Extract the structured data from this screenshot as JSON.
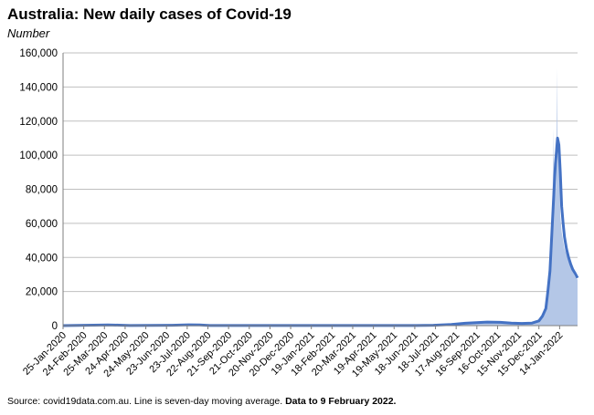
{
  "title": "Australia: New daily cases of Covid-19",
  "subtitle": "Number",
  "source": {
    "text": "Source: covid19data.com.au.  Line is seven-day moving average. ",
    "bold": "Data to 9 February 2022."
  },
  "colors": {
    "area": "#b4c7e7",
    "line": "#4472c4",
    "grid": "#bfbfbf",
    "axis": "#7f7f7f"
  },
  "chart_data": {
    "type": "area",
    "xlabel": "",
    "ylabel": "",
    "ylim": [
      0,
      160000
    ],
    "yticks": [
      0,
      20000,
      40000,
      60000,
      80000,
      100000,
      120000,
      140000,
      160000
    ],
    "ytick_labels": [
      "0",
      "20,000",
      "40,000",
      "60,000",
      "80,000",
      "100,000",
      "120,000",
      "140,000",
      "160,000"
    ],
    "x_range": [
      "2020-01-25",
      "2022-02-09"
    ],
    "x_tick_labels": [
      "25-Jan-2020",
      "24-Feb-2020",
      "25-Mar-2020",
      "24-Apr-2020",
      "24-May-2020",
      "23-Jun-2020",
      "23-Jul-2020",
      "22-Aug-2020",
      "21-Sep-2020",
      "21-Oct-2020",
      "20-Nov-2020",
      "20-Dec-2020",
      "19-Jan-2021",
      "18-Feb-2021",
      "20-Mar-2021",
      "19-Apr-2021",
      "19-May-2021",
      "18-Jun-2021",
      "18-Jul-2021",
      "17-Aug-2021",
      "16-Sep-2021",
      "16-Oct-2021",
      "15-Nov-2021",
      "15-Dec-2021",
      "14-Jan-2022"
    ],
    "grid": true,
    "legend": "none",
    "series": [
      {
        "kind": "area",
        "x": [
          "2020-01-25",
          "2020-03-15",
          "2020-03-28",
          "2020-04-10",
          "2020-05-01",
          "2020-07-01",
          "2020-07-25",
          "2020-08-08",
          "2020-08-25",
          "2021-06-20",
          "2021-07-15",
          "2021-08-10",
          "2021-08-30",
          "2021-09-15",
          "2021-10-01",
          "2021-10-20",
          "2021-11-05",
          "2021-11-20",
          "2021-12-05",
          "2021-12-15",
          "2021-12-20",
          "2021-12-25",
          "2021-12-28",
          "2021-12-31",
          "2022-01-02",
          "2022-01-04",
          "2022-01-05",
          "2022-01-06",
          "2022-01-07",
          "2022-01-08",
          "2022-01-09",
          "2022-01-10",
          "2022-01-11",
          "2022-01-12",
          "2022-01-13",
          "2022-01-14",
          "2022-01-15",
          "2022-01-17",
          "2022-01-19",
          "2022-01-21",
          "2022-01-24",
          "2022-01-27",
          "2022-01-30",
          "2022-02-02",
          "2022-02-05",
          "2022-02-09"
        ],
        "y": [
          0,
          300,
          600,
          300,
          50,
          200,
          700,
          400,
          50,
          30,
          200,
          800,
          1500,
          1800,
          2300,
          2000,
          1500,
          1300,
          1500,
          3000,
          6000,
          12000,
          25000,
          35000,
          55000,
          80000,
          116000,
          60000,
          95000,
          110000,
          75000,
          151000,
          103000,
          100000,
          95000,
          85000,
          65000,
          55000,
          50000,
          45000,
          42000,
          38000,
          35000,
          32000,
          29000,
          27000
        ]
      },
      {
        "kind": "line",
        "x": [
          "2020-01-25",
          "2020-03-20",
          "2020-03-30",
          "2020-04-15",
          "2020-05-01",
          "2020-07-01",
          "2020-07-25",
          "2020-08-10",
          "2020-08-25",
          "2021-06-20",
          "2021-07-15",
          "2021-08-10",
          "2021-08-30",
          "2021-09-15",
          "2021-10-01",
          "2021-10-20",
          "2021-11-05",
          "2021-11-20",
          "2021-12-05",
          "2021-12-15",
          "2021-12-20",
          "2021-12-25",
          "2021-12-28",
          "2021-12-31",
          "2022-01-02",
          "2022-01-04",
          "2022-01-06",
          "2022-01-08",
          "2022-01-10",
          "2022-01-11",
          "2022-01-12",
          "2022-01-13",
          "2022-01-15",
          "2022-01-17",
          "2022-01-19",
          "2022-01-21",
          "2022-01-24",
          "2022-01-27",
          "2022-01-30",
          "2022-02-02",
          "2022-02-05",
          "2022-02-09"
        ],
        "y": [
          0,
          300,
          450,
          250,
          50,
          200,
          500,
          450,
          50,
          30,
          200,
          700,
          1400,
          1700,
          2100,
          1900,
          1500,
          1300,
          1500,
          2800,
          5500,
          10000,
          20000,
          32000,
          48000,
          64000,
          80000,
          95000,
          105000,
          110000,
          108000,
          106000,
          90000,
          70000,
          60000,
          52000,
          45000,
          40000,
          36000,
          33000,
          31000,
          28000
        ]
      }
    ]
  }
}
